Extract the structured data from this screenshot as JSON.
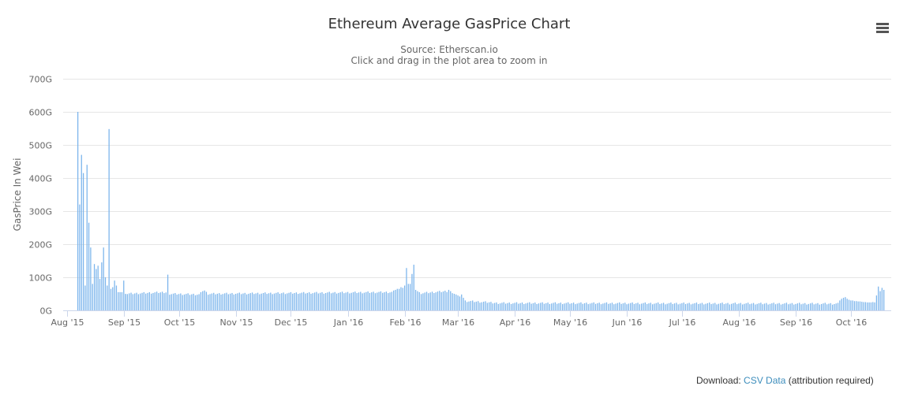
{
  "title": "Ethereum Average GasPrice Chart",
  "subtitle_line1": "Source: Etherscan.io",
  "subtitle_line2": "Click and drag in the plot area to zoom in",
  "menu_icon": "hamburger-menu-icon",
  "download": {
    "prefix": "Download:",
    "link": "CSV Data",
    "suffix": "(attribution required)"
  },
  "colors": {
    "bar": "#7cb5ec",
    "grid": "#e6e6e6",
    "axis_text": "#666666",
    "link": "#3c8dbc"
  },
  "chart_data": {
    "type": "bar",
    "title": "Ethereum Average GasPrice Chart",
    "subtitle": "Source: Etherscan.io",
    "xlabel": "",
    "ylabel": "GasPrice In Wei",
    "ylim": [
      0,
      700
    ],
    "yunit": "G",
    "yticks": [
      0,
      100,
      200,
      300,
      400,
      500,
      600,
      700
    ],
    "yticklabels": [
      "0G",
      "100G",
      "200G",
      "300G",
      "400G",
      "500G",
      "600G",
      "700G"
    ],
    "grid": true,
    "legend": "none",
    "xlim": [
      "2015-07-30",
      "2016-10-23"
    ],
    "xticks": [
      "2015-08-01",
      "2015-09-01",
      "2015-10-01",
      "2015-11-01",
      "2015-12-01",
      "2016-01-01",
      "2016-02-01",
      "2016-03-01",
      "2016-04-01",
      "2016-05-01",
      "2016-06-01",
      "2016-07-01",
      "2016-08-01",
      "2016-09-01",
      "2016-10-01"
    ],
    "xticklabels": [
      "Aug '15",
      "Sep '15",
      "Oct '15",
      "Nov '15",
      "Dec '15",
      "Jan '16",
      "Feb '16",
      "Mar '16",
      "Apr '16",
      "May '16",
      "Jun '16",
      "Jul '16",
      "Aug '16",
      "Sep '16",
      "Oct '16"
    ],
    "series": [
      {
        "values": [
          {
            "start": "2015-08-07",
            "values": [
              600,
              320,
              470,
              415,
              75,
              440,
              265,
              190,
              80,
              140,
              125,
              135,
              95,
              145,
              190,
              100,
              75,
              548,
              65,
              70,
              90,
              75,
              55,
              55,
              55,
              90,
              50
            ]
          },
          {
            "start": "2015-09-02",
            "end": "2015-09-24",
            "from": 50,
            "to": 55
          },
          {
            "start": "2015-09-25",
            "values": [
              108
            ]
          },
          {
            "start": "2015-09-26",
            "end": "2015-10-12",
            "from": 50,
            "to": 48
          },
          {
            "start": "2015-10-13",
            "values": [
              55,
              58,
              60,
              56
            ]
          },
          {
            "start": "2015-10-17",
            "end": "2016-01-25",
            "from": 50,
            "to": 55
          },
          {
            "start": "2016-01-26",
            "values": [
              60,
              62,
              65,
              65,
              70,
              68,
              75,
              128,
              80,
              80,
              110,
              138,
              62,
              58,
              55
            ]
          },
          {
            "start": "2016-02-10",
            "end": "2016-02-24",
            "from": 52,
            "to": 58
          },
          {
            "start": "2016-02-25",
            "values": [
              62,
              58,
              52,
              50,
              48,
              45,
              42,
              48,
              38,
              30
            ]
          },
          {
            "start": "2016-03-06",
            "end": "2016-03-22",
            "from": 28,
            "to": 23
          },
          {
            "start": "2016-03-23",
            "end": "2016-09-24",
            "from": 22,
            "to": 20
          },
          {
            "start": "2016-09-25",
            "values": [
              30,
              35,
              38,
              40,
              35,
              32,
              30,
              30,
              28,
              28,
              27,
              27,
              26,
              25,
              25,
              24,
              24,
              24,
              25,
              24,
              45,
              72,
              58,
              68,
              62
            ]
          }
        ]
      }
    ]
  }
}
